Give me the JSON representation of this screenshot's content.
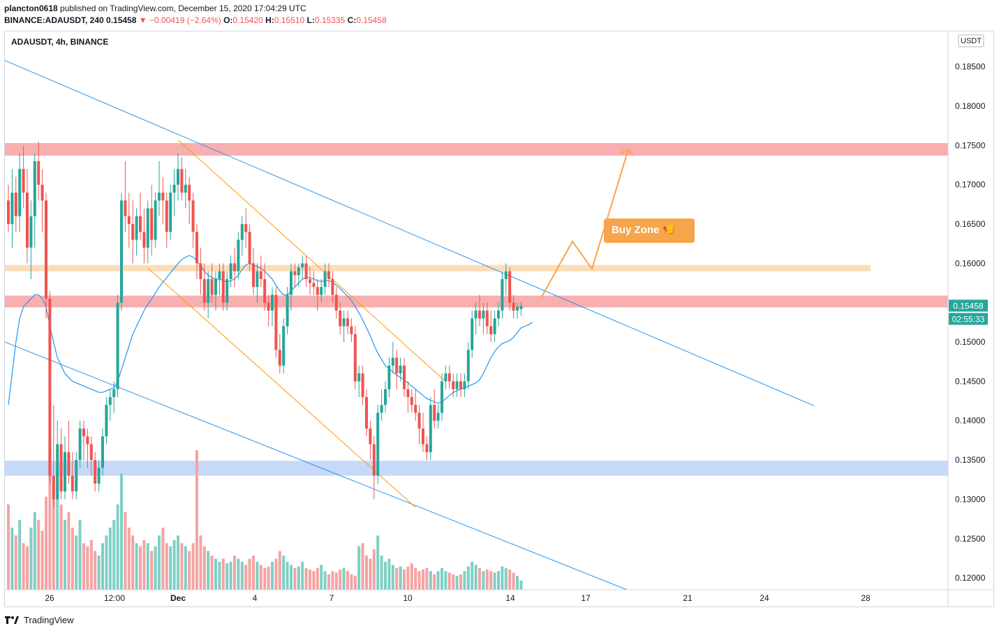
{
  "header": {
    "author": "plancton0618",
    "published_text": "published on TradingView.com, December 15, 2020 17:04:29 UTC",
    "symbol_line": "BINANCE:ADAUSDT, 240",
    "last": "0.15458",
    "change": "−0.00419 (−2.64%)",
    "o_label": "O:",
    "o": "0.15420",
    "h_label": "H:",
    "h": "0.15510",
    "l_label": "L:",
    "l": "0.15335",
    "c_label": "C:",
    "c": "0.15458"
  },
  "pane_label": "ADAUSDT, 4h, BINANCE",
  "currency_badge": "USDT",
  "price_badge": "0.15458",
  "timer_badge": "02:55:33",
  "footer_brand": "TradingView",
  "colors": {
    "up": "#26a69a",
    "down": "#ef5350",
    "ma": "#2196f3",
    "channel": "#2196f3",
    "wedge": "#ff9800",
    "red_zone": "#f7a1a1",
    "orange_zone": "#fbd6ad",
    "blue_zone": "#bdd2f7",
    "buy_zone": "#f7a54a"
  },
  "chart_data": {
    "type": "candlestick",
    "symbol": "ADAUSDT",
    "timeframe": "4h",
    "exchange": "BINANCE",
    "y_axis": {
      "ticks": [
        "0.18500",
        "0.18000",
        "0.17500",
        "0.17000",
        "0.16500",
        "0.16000",
        "0.15000",
        "0.14500",
        "0.14000",
        "0.13500",
        "0.13000",
        "0.12500",
        "0.12000"
      ],
      "range": [
        0.1185,
        0.1895
      ]
    },
    "x_axis": {
      "ticks": [
        "26",
        "12:00",
        "Dec",
        "4",
        "7",
        "10",
        "14",
        "17",
        "21",
        "24",
        "28"
      ]
    },
    "annotations": {
      "buy_zone_label": "Buy Zone",
      "buy_zone_emoji": "🍤",
      "resistance_zone": [
        0.1737,
        0.1753
      ],
      "buy_zone_band": [
        0.159,
        0.1598
      ],
      "current_zone": [
        0.1544,
        0.1559
      ],
      "support_zone": [
        0.133,
        0.1349
      ]
    },
    "ohlc": [
      [
        0.168,
        0.17,
        0.164,
        0.165
      ],
      [
        0.165,
        0.172,
        0.162,
        0.169
      ],
      [
        0.169,
        0.171,
        0.164,
        0.166
      ],
      [
        0.166,
        0.174,
        0.164,
        0.172
      ],
      [
        0.172,
        0.175,
        0.167,
        0.169
      ],
      [
        0.169,
        0.172,
        0.16,
        0.162
      ],
      [
        0.162,
        0.168,
        0.158,
        0.166
      ],
      [
        0.166,
        0.174,
        0.162,
        0.173
      ],
      [
        0.173,
        0.1755,
        0.168,
        0.17
      ],
      [
        0.17,
        0.172,
        0.164,
        0.168
      ],
      [
        0.168,
        0.169,
        0.153,
        0.1555
      ],
      [
        0.1555,
        0.1565,
        0.132,
        0.133
      ],
      [
        0.133,
        0.142,
        0.129,
        0.13
      ],
      [
        0.13,
        0.14,
        0.13,
        0.137
      ],
      [
        0.137,
        0.139,
        0.13,
        0.131
      ],
      [
        0.131,
        0.138,
        0.13,
        0.136
      ],
      [
        0.136,
        0.14,
        0.132,
        0.133
      ],
      [
        0.133,
        0.136,
        0.13,
        0.131
      ],
      [
        0.131,
        0.136,
        0.13,
        0.135
      ],
      [
        0.135,
        0.14,
        0.134,
        0.139
      ],
      [
        0.139,
        0.14,
        0.135,
        0.138
      ],
      [
        0.138,
        0.139,
        0.134,
        0.137
      ],
      [
        0.137,
        0.138,
        0.133,
        0.135
      ],
      [
        0.135,
        0.136,
        0.131,
        0.132
      ],
      [
        0.132,
        0.135,
        0.131,
        0.134
      ],
      [
        0.134,
        0.139,
        0.133,
        0.138
      ],
      [
        0.138,
        0.143,
        0.137,
        0.142
      ],
      [
        0.142,
        0.144,
        0.14,
        0.143
      ],
      [
        0.143,
        0.145,
        0.141,
        0.144
      ],
      [
        0.144,
        0.156,
        0.143,
        0.155
      ],
      [
        0.155,
        0.169,
        0.154,
        0.168
      ],
      [
        0.168,
        0.173,
        0.164,
        0.166
      ],
      [
        0.166,
        0.169,
        0.162,
        0.165
      ],
      [
        0.165,
        0.168,
        0.16,
        0.163
      ],
      [
        0.163,
        0.167,
        0.161,
        0.166
      ],
      [
        0.166,
        0.169,
        0.163,
        0.164
      ],
      [
        0.164,
        0.167,
        0.16,
        0.162
      ],
      [
        0.162,
        0.168,
        0.16,
        0.167
      ],
      [
        0.167,
        0.17,
        0.161,
        0.163
      ],
      [
        0.163,
        0.169,
        0.162,
        0.168
      ],
      [
        0.168,
        0.173,
        0.166,
        0.169
      ],
      [
        0.169,
        0.171,
        0.165,
        0.168
      ],
      [
        0.168,
        0.169,
        0.162,
        0.164
      ],
      [
        0.164,
        0.17,
        0.163,
        0.169
      ],
      [
        0.169,
        0.172,
        0.166,
        0.17
      ],
      [
        0.17,
        0.174,
        0.168,
        0.172
      ],
      [
        0.172,
        0.1735,
        0.168,
        0.169
      ],
      [
        0.169,
        0.172,
        0.167,
        0.17
      ],
      [
        0.17,
        0.171,
        0.165,
        0.168
      ],
      [
        0.168,
        0.169,
        0.162,
        0.164
      ],
      [
        0.164,
        0.165,
        0.158,
        0.16
      ],
      [
        0.16,
        0.162,
        0.156,
        0.158
      ],
      [
        0.158,
        0.16,
        0.154,
        0.155
      ],
      [
        0.155,
        0.159,
        0.153,
        0.158
      ],
      [
        0.158,
        0.16,
        0.155,
        0.156
      ],
      [
        0.156,
        0.159,
        0.154,
        0.158
      ],
      [
        0.158,
        0.16,
        0.156,
        0.159
      ],
      [
        0.159,
        0.16,
        0.154,
        0.155
      ],
      [
        0.155,
        0.159,
        0.154,
        0.158
      ],
      [
        0.158,
        0.161,
        0.157,
        0.16
      ],
      [
        0.16,
        0.162,
        0.157,
        0.159
      ],
      [
        0.159,
        0.164,
        0.158,
        0.163
      ],
      [
        0.163,
        0.166,
        0.161,
        0.165
      ],
      [
        0.165,
        0.167,
        0.162,
        0.164
      ],
      [
        0.164,
        0.165,
        0.159,
        0.16
      ],
      [
        0.16,
        0.162,
        0.156,
        0.157
      ],
      [
        0.157,
        0.16,
        0.155,
        0.159
      ],
      [
        0.159,
        0.161,
        0.157,
        0.158
      ],
      [
        0.158,
        0.16,
        0.154,
        0.155
      ],
      [
        0.155,
        0.156,
        0.152,
        0.154
      ],
      [
        0.154,
        0.157,
        0.152,
        0.156
      ],
      [
        0.156,
        0.157,
        0.148,
        0.149
      ],
      [
        0.149,
        0.151,
        0.146,
        0.147
      ],
      [
        0.147,
        0.153,
        0.146,
        0.152
      ],
      [
        0.152,
        0.157,
        0.151,
        0.156
      ],
      [
        0.156,
        0.16,
        0.154,
        0.159
      ],
      [
        0.159,
        0.16,
        0.157,
        0.1585
      ],
      [
        0.1585,
        0.16,
        0.157,
        0.1595
      ],
      [
        0.1595,
        0.161,
        0.158,
        0.16
      ],
      [
        0.16,
        0.161,
        0.157,
        0.158
      ],
      [
        0.158,
        0.1595,
        0.156,
        0.1575
      ],
      [
        0.1575,
        0.159,
        0.156,
        0.157
      ],
      [
        0.157,
        0.158,
        0.154,
        0.156
      ],
      [
        0.156,
        0.158,
        0.155,
        0.157
      ],
      [
        0.157,
        0.16,
        0.156,
        0.159
      ],
      [
        0.159,
        0.16,
        0.157,
        0.158
      ],
      [
        0.158,
        0.159,
        0.155,
        0.156
      ],
      [
        0.156,
        0.157,
        0.153,
        0.154
      ],
      [
        0.154,
        0.155,
        0.151,
        0.152
      ],
      [
        0.152,
        0.154,
        0.15,
        0.153
      ],
      [
        0.153,
        0.154,
        0.151,
        0.152
      ],
      [
        0.152,
        0.153,
        0.15,
        0.151
      ],
      [
        0.151,
        0.152,
        0.144,
        0.145
      ],
      [
        0.145,
        0.147,
        0.143,
        0.146
      ],
      [
        0.146,
        0.147,
        0.142,
        0.143
      ],
      [
        0.143,
        0.144,
        0.138,
        0.139
      ],
      [
        0.139,
        0.14,
        0.135,
        0.137
      ],
      [
        0.137,
        0.138,
        0.13,
        0.133
      ],
      [
        0.133,
        0.142,
        0.132,
        0.141
      ],
      [
        0.141,
        0.144,
        0.14,
        0.142
      ],
      [
        0.142,
        0.145,
        0.141,
        0.144
      ],
      [
        0.144,
        0.148,
        0.143,
        0.147
      ],
      [
        0.147,
        0.15,
        0.146,
        0.148
      ],
      [
        0.148,
        0.149,
        0.144,
        0.146
      ],
      [
        0.146,
        0.148,
        0.145,
        0.147
      ],
      [
        0.147,
        0.148,
        0.143,
        0.144
      ],
      [
        0.144,
        0.145,
        0.141,
        0.143
      ],
      [
        0.143,
        0.144,
        0.141,
        0.142
      ],
      [
        0.142,
        0.144,
        0.14,
        0.141
      ],
      [
        0.141,
        0.142,
        0.137,
        0.139
      ],
      [
        0.139,
        0.141,
        0.136,
        0.137
      ],
      [
        0.137,
        0.138,
        0.135,
        0.136
      ],
      [
        0.136,
        0.143,
        0.135,
        0.142
      ],
      [
        0.142,
        0.144,
        0.139,
        0.14
      ],
      [
        0.14,
        0.142,
        0.139,
        0.141
      ],
      [
        0.141,
        0.146,
        0.14,
        0.145
      ],
      [
        0.145,
        0.147,
        0.144,
        0.146
      ],
      [
        0.146,
        0.147,
        0.144,
        0.145
      ],
      [
        0.145,
        0.146,
        0.143,
        0.144
      ],
      [
        0.144,
        0.146,
        0.143,
        0.145
      ],
      [
        0.145,
        0.146,
        0.143,
        0.144
      ],
      [
        0.144,
        0.146,
        0.143,
        0.145
      ],
      [
        0.145,
        0.15,
        0.144,
        0.149
      ],
      [
        0.149,
        0.154,
        0.148,
        0.153
      ],
      [
        0.153,
        0.155,
        0.151,
        0.154
      ],
      [
        0.154,
        0.156,
        0.152,
        0.153
      ],
      [
        0.153,
        0.155,
        0.151,
        0.154
      ],
      [
        0.154,
        0.155,
        0.151,
        0.152
      ],
      [
        0.152,
        0.154,
        0.15,
        0.151
      ],
      [
        0.151,
        0.154,
        0.15,
        0.153
      ],
      [
        0.153,
        0.155,
        0.152,
        0.154
      ],
      [
        0.154,
        0.159,
        0.153,
        0.158
      ],
      [
        0.158,
        0.16,
        0.156,
        0.159
      ],
      [
        0.159,
        0.1595,
        0.154,
        0.155
      ],
      [
        0.155,
        0.156,
        0.153,
        0.154
      ],
      [
        0.154,
        0.155,
        0.153,
        0.1545
      ],
      [
        0.1542,
        0.1551,
        0.15335,
        0.15458
      ]
    ],
    "ma": [
      0.142,
      0.146,
      0.15,
      0.153,
      0.1545,
      0.155,
      0.1555,
      0.156,
      0.156,
      0.1555,
      0.1545,
      0.152,
      0.15,
      0.148,
      0.147,
      0.146,
      0.1455,
      0.145,
      0.1448,
      0.1446,
      0.1444,
      0.1442,
      0.144,
      0.1438,
      0.1436,
      0.1436,
      0.1438,
      0.144,
      0.1442,
      0.145,
      0.1465,
      0.148,
      0.1495,
      0.151,
      0.152,
      0.153,
      0.154,
      0.1548,
      0.1555,
      0.1562,
      0.157,
      0.1576,
      0.1582,
      0.1588,
      0.1594,
      0.16,
      0.1605,
      0.1608,
      0.161,
      0.1608,
      0.1603,
      0.1597,
      0.159,
      0.1585,
      0.1582,
      0.158,
      0.158,
      0.1578,
      0.1576,
      0.1578,
      0.158,
      0.1585,
      0.1592,
      0.1598,
      0.16,
      0.1598,
      0.1596,
      0.1594,
      0.159,
      0.1585,
      0.158,
      0.1572,
      0.1565,
      0.156,
      0.156,
      0.1565,
      0.157,
      0.1575,
      0.158,
      0.1582,
      0.1582,
      0.158,
      0.1578,
      0.1577,
      0.1578,
      0.1578,
      0.1576,
      0.1572,
      0.1568,
      0.1563,
      0.1558,
      0.1553,
      0.1545,
      0.1537,
      0.1528,
      0.1518,
      0.1508,
      0.1496,
      0.1486,
      0.1478,
      0.147,
      0.1466,
      0.1462,
      0.1458,
      0.1455,
      0.1452,
      0.1448,
      0.1444,
      0.144,
      0.1436,
      0.1432,
      0.1428,
      0.1426,
      0.1424,
      0.1422,
      0.1424,
      0.1428,
      0.1432,
      0.1436,
      0.1438,
      0.144,
      0.1442,
      0.1444,
      0.1446,
      0.1448,
      0.1452,
      0.146,
      0.147,
      0.148,
      0.1488,
      0.1494,
      0.1498,
      0.15,
      0.1502,
      0.1506,
      0.1512,
      0.1518,
      0.152,
      0.1522,
      0.1525
    ],
    "volume": [
      0.55,
      0.4,
      0.35,
      0.45,
      0.3,
      0.28,
      0.4,
      0.5,
      0.45,
      0.38,
      0.6,
      0.9,
      0.7,
      0.8,
      0.55,
      0.45,
      0.5,
      0.4,
      0.35,
      0.45,
      0.3,
      0.28,
      0.32,
      0.25,
      0.22,
      0.3,
      0.35,
      0.4,
      0.45,
      0.55,
      0.75,
      0.5,
      0.4,
      0.35,
      0.3,
      0.28,
      0.32,
      0.3,
      0.25,
      0.28,
      0.35,
      0.4,
      0.3,
      0.28,
      0.32,
      0.35,
      0.3,
      0.28,
      0.25,
      0.3,
      0.9,
      0.35,
      0.28,
      0.25,
      0.22,
      0.2,
      0.18,
      0.2,
      0.17,
      0.18,
      0.22,
      0.2,
      0.18,
      0.16,
      0.2,
      0.22,
      0.18,
      0.16,
      0.14,
      0.15,
      0.18,
      0.2,
      0.25,
      0.22,
      0.18,
      0.16,
      0.14,
      0.15,
      0.18,
      0.14,
      0.13,
      0.12,
      0.14,
      0.16,
      0.12,
      0.1,
      0.12,
      0.11,
      0.13,
      0.14,
      0.12,
      0.1,
      0.09,
      0.28,
      0.3,
      0.22,
      0.2,
      0.26,
      0.35,
      0.22,
      0.18,
      0.2,
      0.16,
      0.14,
      0.15,
      0.13,
      0.15,
      0.17,
      0.14,
      0.12,
      0.13,
      0.14,
      0.12,
      0.1,
      0.12,
      0.14,
      0.12,
      0.11,
      0.1,
      0.09,
      0.1,
      0.12,
      0.15,
      0.18,
      0.16,
      0.14,
      0.12,
      0.13,
      0.12,
      0.11,
      0.12,
      0.15,
      0.14,
      0.13,
      0.11,
      0.09,
      0.06
    ]
  }
}
